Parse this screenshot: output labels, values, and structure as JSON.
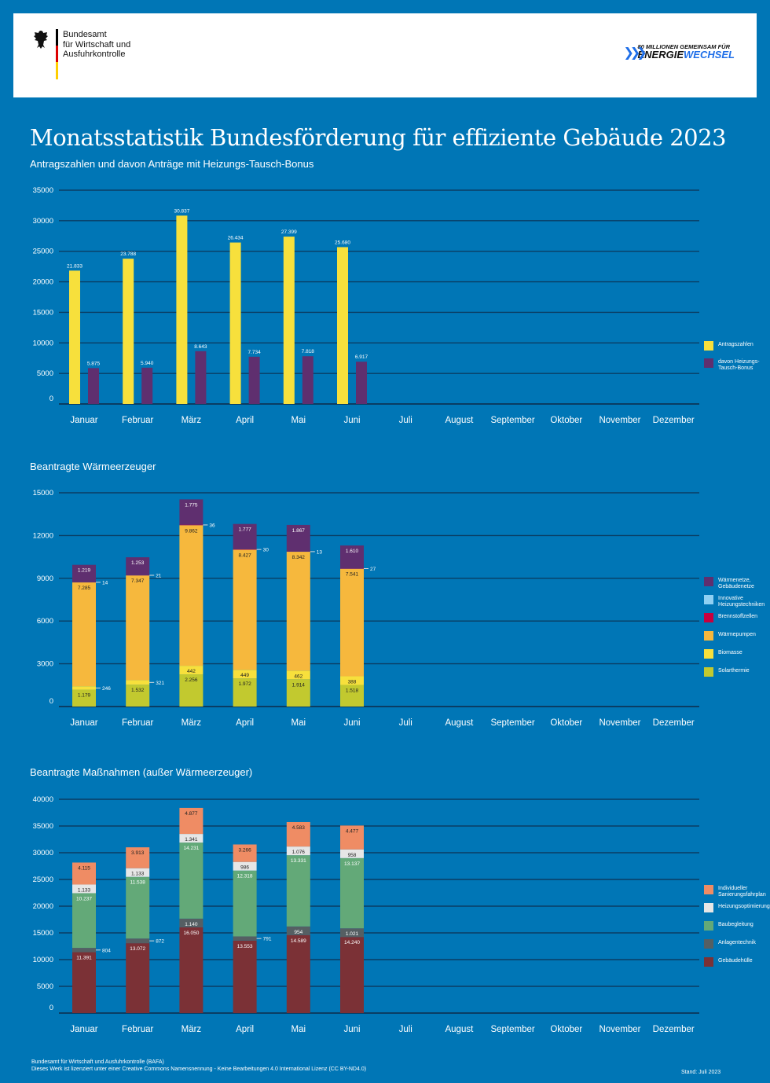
{
  "header": {
    "agency_lines": [
      "Bundesamt",
      "für Wirtschaft und",
      "Ausfuhrkontrolle"
    ],
    "campaign_small": "80 MILLIONEN GEMEINSAM FÜR",
    "campaign_big_1": "ENERGIE",
    "campaign_big_2": "WECHSEL"
  },
  "title": "Monatsstatistik Bundesförderung für effiziente Gebäude 2023",
  "colors": {
    "background": "#0076b6",
    "gridline": "#0a3d63"
  },
  "chart_data": [
    {
      "type": "bar",
      "title": "Antragszahlen und davon Anträge mit Heizungs-Tausch-Bonus",
      "categories": [
        "Januar",
        "Februar",
        "März",
        "April",
        "Mai",
        "Juni",
        "Juli",
        "August",
        "September",
        "Oktober",
        "November",
        "Dezember"
      ],
      "ylim": [
        0,
        35000
      ],
      "yticks": [
        0,
        5000,
        10000,
        15000,
        20000,
        25000,
        30000,
        35000
      ],
      "grid": true,
      "legend": "right",
      "stacked": false,
      "series": [
        {
          "name": "Antragszahlen",
          "color": "#f7e03c",
          "values": [
            21833,
            23788,
            30837,
            26434,
            27399,
            25680,
            null,
            null,
            null,
            null,
            null,
            null
          ]
        },
        {
          "name": "davon Heizungs-Tausch-Bonus",
          "color": "#5f2f6f",
          "values": [
            5875,
            5940,
            8643,
            7734,
            7818,
            6917,
            null,
            null,
            null,
            null,
            null,
            null
          ]
        }
      ]
    },
    {
      "type": "bar",
      "title": "Beantragte Wärmeerzeuger",
      "categories": [
        "Januar",
        "Februar",
        "März",
        "April",
        "Mai",
        "Juni",
        "Juli",
        "August",
        "September",
        "Oktober",
        "November",
        "Dezember"
      ],
      "ylim": [
        0,
        15000
      ],
      "yticks": [
        0,
        3000,
        6000,
        9000,
        12000,
        15000
      ],
      "grid": true,
      "legend": "right",
      "stacked": true,
      "legend_order": [
        "Wärmenetze, Gebäudenetze",
        "Innovative Heizungstechniken",
        "Brennstoffzellen",
        "Wärmepumpen",
        "Biomasse",
        "Solarthermie"
      ],
      "series": [
        {
          "name": "Solarthermie",
          "color": "#c2c92f",
          "text": "#222",
          "values": [
            1179,
            1532,
            2256,
            1972,
            1914,
            1518,
            null,
            null,
            null,
            null,
            null,
            null
          ]
        },
        {
          "name": "Biomasse",
          "color": "#f7e03c",
          "text": "#222",
          "values": [
            246,
            321,
            442,
            449,
            462,
            388,
            null,
            null,
            null,
            null,
            null,
            null
          ]
        },
        {
          "name": "Wärmepumpen",
          "color": "#f6b83d",
          "text": "#222",
          "values": [
            7285,
            7347,
            9862,
            8427,
            8342,
            7541,
            null,
            null,
            null,
            null,
            null,
            null
          ]
        },
        {
          "name": "Brennstoffzellen",
          "color": "#c8003f",
          "text": "#fff",
          "values": [
            14,
            21,
            36,
            30,
            13,
            27,
            null,
            null,
            null,
            null,
            null,
            null
          ]
        },
        {
          "name": "Innovative Heizungstechniken",
          "color": "#8fd0f3",
          "text": "#222",
          "values": [
            null,
            null,
            null,
            null,
            null,
            null,
            null,
            null,
            null,
            null,
            null,
            null
          ]
        },
        {
          "name": "Wärmenetze, Gebäudenetze",
          "color": "#5f2f6f",
          "text": "#fff",
          "values": [
            1219,
            1253,
            1775,
            1777,
            1867,
            1610,
            null,
            null,
            null,
            null,
            null,
            null
          ]
        }
      ]
    },
    {
      "type": "bar",
      "title": "Beantragte Maßnahmen (außer Wärmeerzeuger)",
      "categories": [
        "Januar",
        "Februar",
        "März",
        "April",
        "Mai",
        "Juni",
        "Juli",
        "August",
        "September",
        "Oktober",
        "November",
        "Dezember"
      ],
      "ylim": [
        0,
        40000
      ],
      "yticks": [
        0,
        5000,
        10000,
        15000,
        20000,
        25000,
        30000,
        35000,
        40000
      ],
      "grid": true,
      "legend": "right",
      "stacked": true,
      "legend_order": [
        "Individueller Sanierungsfahrplan",
        "Heizungsoptimierung",
        "Baubegleitung",
        "Anlagentechnik",
        "Gebäudehülle"
      ],
      "series": [
        {
          "name": "Gebäudehülle",
          "color": "#7b3136",
          "text": "#fff",
          "values": [
            11391,
            13072,
            16050,
            13553,
            14589,
            14240,
            null,
            null,
            null,
            null,
            null,
            null
          ]
        },
        {
          "name": "Anlagentechnik",
          "color": "#555f63",
          "text": "#fff",
          "values": [
            804,
            872,
            1140,
            791,
            954,
            1021,
            null,
            null,
            null,
            null,
            null,
            null
          ]
        },
        {
          "name": "Baubegleitung",
          "color": "#63a978",
          "text": "#fff",
          "values": [
            10237,
            11538,
            14231,
            12318,
            13331,
            13137,
            null,
            null,
            null,
            null,
            null,
            null
          ]
        },
        {
          "name": "Heizungsoptimierung",
          "color": "#e6e6e6",
          "text": "#222",
          "values": [
            1133,
            1133,
            1341,
            986,
            1076,
            958,
            null,
            null,
            null,
            null,
            null,
            null
          ]
        },
        {
          "name": "Individueller Sanierungsfahrplan",
          "color": "#ef8c64",
          "text": "#222",
          "values": [
            4115,
            3913,
            4877,
            3266,
            4583,
            4477,
            null,
            null,
            null,
            null,
            null,
            null
          ]
        }
      ]
    }
  ],
  "footer": {
    "line1": "Bundesamt für Wirtschaft und Ausfuhrkontrolle (BAFA)",
    "line2": "Dieses Werk ist lizenziert unter einer Creative Commons Namensnennung - Keine Bearbeitungen 4.0 International Lizenz (CC BY-ND4.0)",
    "stand": "Stand: Juli 2023"
  }
}
